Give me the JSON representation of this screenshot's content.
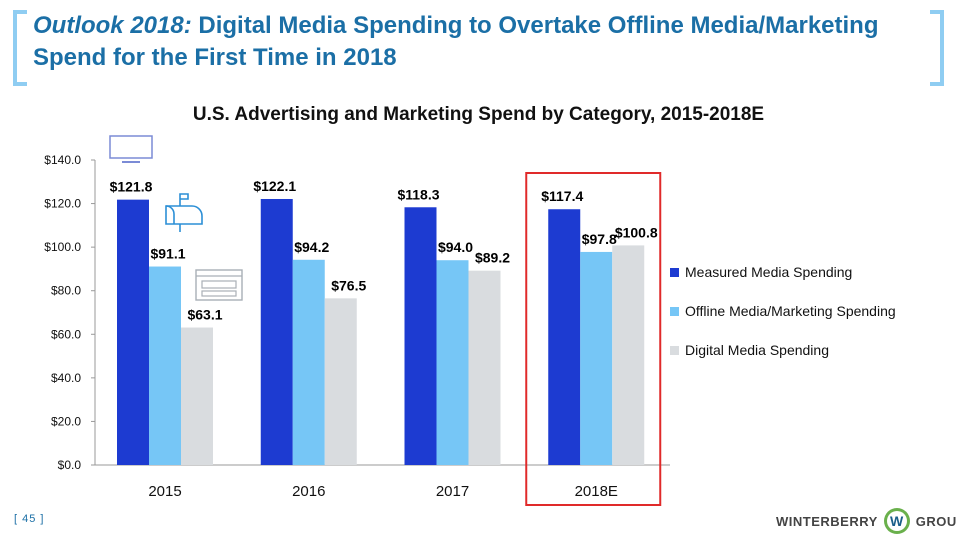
{
  "header": {
    "title_italic": "Outlook 2018:",
    "title_rest": " Digital Media Spending to Overtake Offline Media/Marketing Spend for the First Time in 2018"
  },
  "footer": {
    "page_number": "[ 45 ]",
    "logo_left": "WINTERBERRY",
    "logo_mark": "W",
    "logo_right": "GROUP"
  },
  "icons": {
    "monitor": "monitor-icon",
    "mailbox": "mailbox-icon",
    "browser": "browser-window-icon"
  },
  "colors": {
    "measured": "#1d3bd1",
    "offline": "#76c6f6",
    "digital": "#d9dcdf",
    "highlight": "#e02a2a",
    "title": "#1b6fa6"
  },
  "chart_data": {
    "type": "bar",
    "title": "U.S. Advertising and Marketing Spend by Category, 2015-2018E",
    "categories": [
      "2015",
      "2016",
      "2017",
      "2018E"
    ],
    "series": [
      {
        "name": "Measured Media Spending",
        "values": [
          121.8,
          122.1,
          118.3,
          117.4
        ],
        "labels": [
          "$121.8",
          "$122.1",
          "$118.3",
          "$117.4"
        ]
      },
      {
        "name": "Offline Media/Marketing Spending",
        "values": [
          91.1,
          94.2,
          94.0,
          97.8
        ],
        "labels": [
          "$91.1",
          "$94.2",
          "$94.0",
          "$97.8"
        ]
      },
      {
        "name": "Digital Media Spending",
        "values": [
          63.1,
          76.5,
          89.2,
          100.8
        ],
        "labels": [
          "$63.1",
          "$76.5",
          "$89.2",
          "$100.8"
        ]
      }
    ],
    "ylim": [
      0,
      140
    ],
    "yticks": [
      "$0.0",
      "$20.0",
      "$40.0",
      "$60.0",
      "$80.0",
      "$100.0",
      "$120.0",
      "$140.0"
    ],
    "xlabel": "",
    "ylabel": "",
    "highlighted_category": "2018E",
    "legend_position": "right"
  }
}
